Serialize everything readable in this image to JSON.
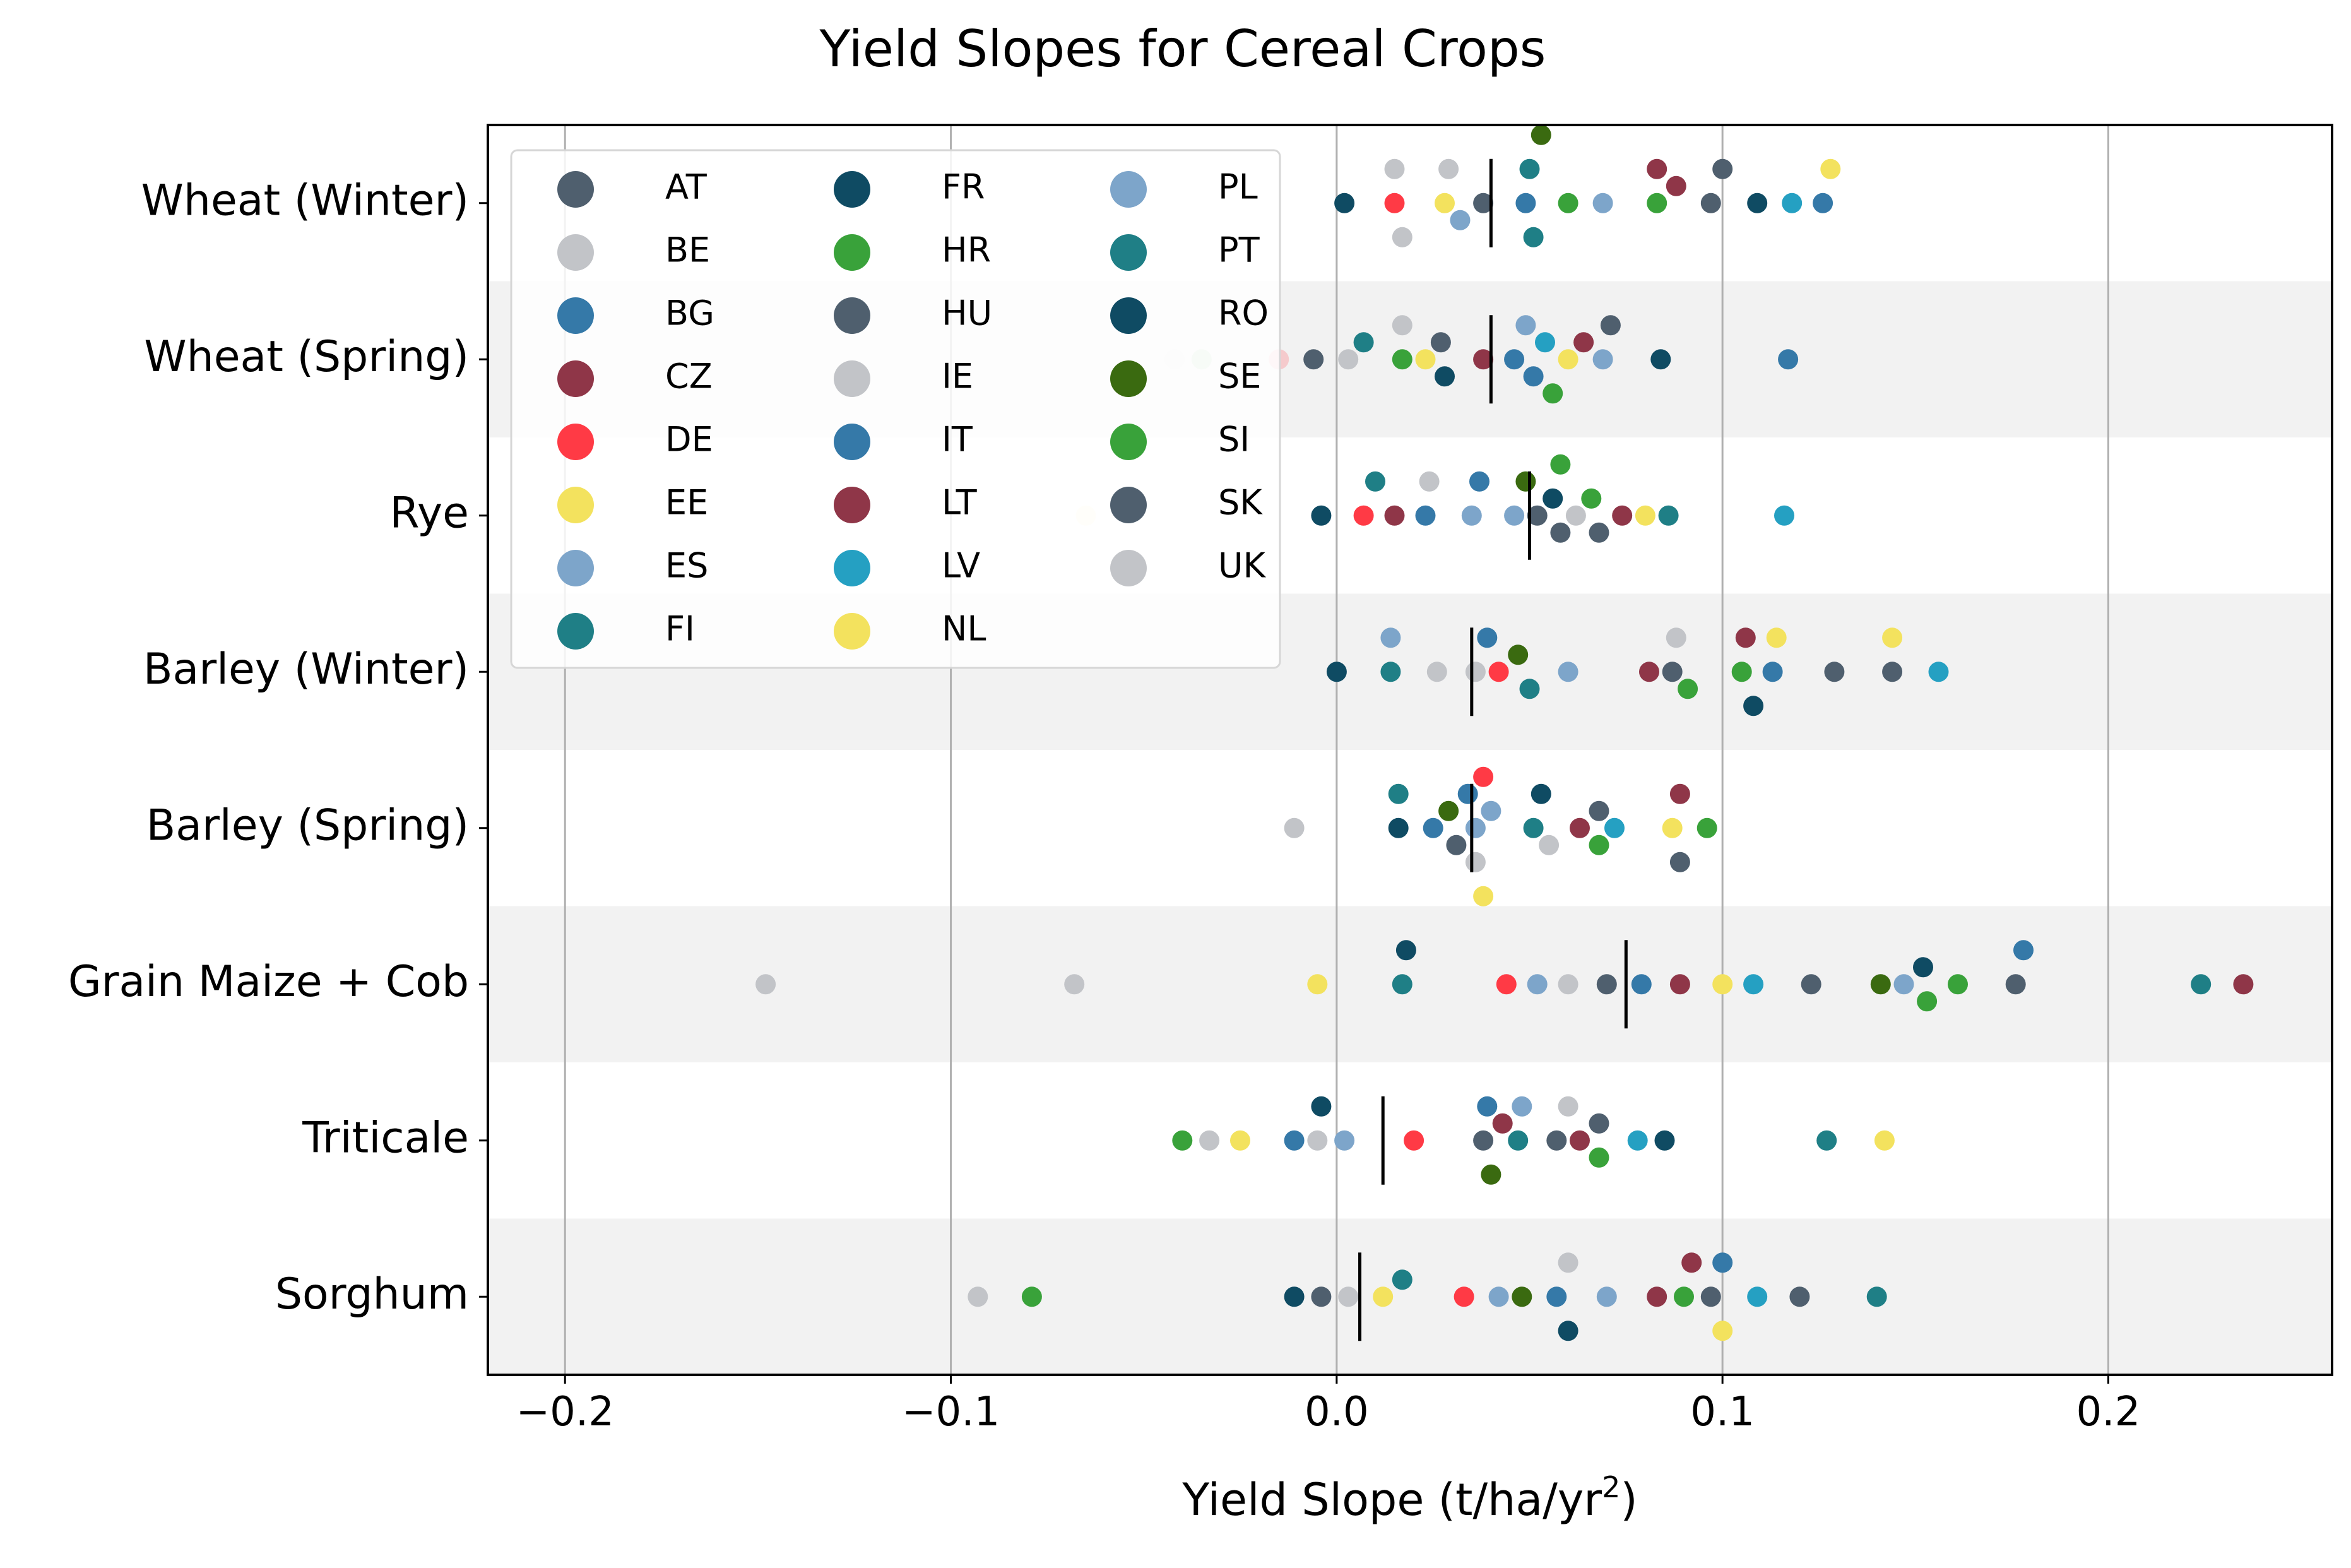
{
  "chart_data": {
    "type": "scatter",
    "subtype": "categorical strip plot",
    "title": "Yield Slopes for Cereal Crops",
    "xlabel": "Yield Slope (t/ha/yr",
    "xlabel_superscript": "2",
    "xlabel_suffix": ")",
    "ylabel": "",
    "xlim": [
      -0.22,
      0.258
    ],
    "xticks": [
      -0.2,
      -0.1,
      0.0,
      0.1,
      0.2
    ],
    "xtick_labels": [
      "−0.2",
      "−0.1",
      "0.0",
      "0.1",
      "0.2"
    ],
    "grid": "x-major",
    "band_color": "#f2f2f2",
    "legend_placement": "upper-left",
    "legend": [
      {
        "code": "AT",
        "color": "#4f5f6e"
      },
      {
        "code": "BE",
        "color": "#c2c4c8"
      },
      {
        "code": "BG",
        "color": "#3579a8"
      },
      {
        "code": "CZ",
        "color": "#8f3648"
      },
      {
        "code": "DE",
        "color": "#ff3a45"
      },
      {
        "code": "EE",
        "color": "#f3e25e"
      },
      {
        "code": "ES",
        "color": "#7da5ca"
      },
      {
        "code": "FI",
        "color": "#1f7f86"
      },
      {
        "code": "FR",
        "color": "#0f4b63"
      },
      {
        "code": "HR",
        "color": "#39a23a"
      },
      {
        "code": "HU",
        "color": "#4f5f6e"
      },
      {
        "code": "IE",
        "color": "#c2c4c8"
      },
      {
        "code": "IT",
        "color": "#3579a8"
      },
      {
        "code": "LT",
        "color": "#8f3648"
      },
      {
        "code": "LV",
        "color": "#25a0c2"
      },
      {
        "code": "NL",
        "color": "#f3e25e"
      },
      {
        "code": "PL",
        "color": "#7da5ca"
      },
      {
        "code": "PT",
        "color": "#1f7f86"
      },
      {
        "code": "RO",
        "color": "#0f4b63"
      },
      {
        "code": "SE",
        "color": "#3a6a10"
      },
      {
        "code": "SI",
        "color": "#39a23a"
      },
      {
        "code": "SK",
        "color": "#4f5f6e"
      },
      {
        "code": "UK",
        "color": "#c2c4c8"
      }
    ],
    "categories": [
      "Wheat (Winter)",
      "Wheat (Spring)",
      "Rye",
      "Barley (Winter)",
      "Barley (Spring)",
      "Grain Maize + Cob",
      "Triticale",
      "Sorghum"
    ],
    "medians": [
      0.04,
      0.04,
      0.05,
      0.035,
      0.035,
      0.075,
      0.012,
      0.006
    ],
    "series": [
      {
        "category": "Wheat (Winter)",
        "points": [
          {
            "x": 0.002,
            "c": "RO"
          },
          {
            "x": 0.015,
            "c": "DE"
          },
          {
            "x": 0.015,
            "c": "BE"
          },
          {
            "x": 0.017,
            "c": "UK"
          },
          {
            "x": 0.028,
            "c": "EE"
          },
          {
            "x": 0.029,
            "c": "IE"
          },
          {
            "x": 0.032,
            "c": "PL"
          },
          {
            "x": 0.038,
            "c": "AT"
          },
          {
            "x": 0.049,
            "c": "IT"
          },
          {
            "x": 0.05,
            "c": "FI"
          },
          {
            "x": 0.051,
            "c": "PT"
          },
          {
            "x": 0.053,
            "c": "SE"
          },
          {
            "x": 0.06,
            "c": "HR"
          },
          {
            "x": 0.069,
            "c": "ES"
          },
          {
            "x": 0.083,
            "c": "SI"
          },
          {
            "x": 0.083,
            "c": "LT"
          },
          {
            "x": 0.088,
            "c": "CZ"
          },
          {
            "x": 0.097,
            "c": "SK"
          },
          {
            "x": 0.1,
            "c": "HU"
          },
          {
            "x": 0.109,
            "c": "FR"
          },
          {
            "x": 0.118,
            "c": "LV"
          },
          {
            "x": 0.126,
            "c": "BG"
          },
          {
            "x": 0.128,
            "c": "NL"
          }
        ]
      },
      {
        "category": "Wheat (Spring)",
        "points": [
          {
            "x": -0.042,
            "c": "BE",
            "faded": true
          },
          {
            "x": -0.035,
            "c": "SI",
            "faded": true
          },
          {
            "x": -0.015,
            "c": "DE",
            "faded": true
          },
          {
            "x": -0.006,
            "c": "AT"
          },
          {
            "x": 0.003,
            "c": "UK"
          },
          {
            "x": 0.007,
            "c": "FI"
          },
          {
            "x": 0.017,
            "c": "HR"
          },
          {
            "x": 0.017,
            "c": "BE"
          },
          {
            "x": 0.023,
            "c": "EE"
          },
          {
            "x": 0.027,
            "c": "SK"
          },
          {
            "x": 0.028,
            "c": "RO"
          },
          {
            "x": 0.038,
            "c": "CZ"
          },
          {
            "x": 0.046,
            "c": "BG"
          },
          {
            "x": 0.049,
            "c": "ES"
          },
          {
            "x": 0.051,
            "c": "IT"
          },
          {
            "x": 0.054,
            "c": "LV"
          },
          {
            "x": 0.056,
            "c": "SI"
          },
          {
            "x": 0.06,
            "c": "NL"
          },
          {
            "x": 0.064,
            "c": "LT"
          },
          {
            "x": 0.069,
            "c": "PL"
          },
          {
            "x": 0.071,
            "c": "HU"
          },
          {
            "x": 0.084,
            "c": "FR"
          },
          {
            "x": 0.117,
            "c": "BG"
          }
        ]
      },
      {
        "category": "Rye",
        "points": [
          {
            "x": -0.065,
            "c": "EE",
            "faded": true
          },
          {
            "x": -0.004,
            "c": "FR"
          },
          {
            "x": 0.007,
            "c": "DE"
          },
          {
            "x": 0.01,
            "c": "PT"
          },
          {
            "x": 0.015,
            "c": "LT"
          },
          {
            "x": 0.023,
            "c": "BG"
          },
          {
            "x": 0.024,
            "c": "BE"
          },
          {
            "x": 0.035,
            "c": "PL"
          },
          {
            "x": 0.037,
            "c": "IT"
          },
          {
            "x": 0.046,
            "c": "ES"
          },
          {
            "x": 0.049,
            "c": "SE"
          },
          {
            "x": 0.052,
            "c": "AT"
          },
          {
            "x": 0.056,
            "c": "RO"
          },
          {
            "x": 0.058,
            "c": "SK"
          },
          {
            "x": 0.058,
            "c": "HR"
          },
          {
            "x": 0.062,
            "c": "UK"
          },
          {
            "x": 0.066,
            "c": "SI"
          },
          {
            "x": 0.068,
            "c": "HU"
          },
          {
            "x": 0.074,
            "c": "CZ"
          },
          {
            "x": 0.08,
            "c": "NL"
          },
          {
            "x": 0.086,
            "c": "FI"
          },
          {
            "x": 0.116,
            "c": "LV"
          }
        ]
      },
      {
        "category": "Barley (Winter)",
        "points": [
          {
            "x": 0.0,
            "c": "RO"
          },
          {
            "x": 0.014,
            "c": "FI"
          },
          {
            "x": 0.014,
            "c": "ES"
          },
          {
            "x": 0.026,
            "c": "BE"
          },
          {
            "x": 0.036,
            "c": "UK"
          },
          {
            "x": 0.039,
            "c": "IT"
          },
          {
            "x": 0.042,
            "c": "DE"
          },
          {
            "x": 0.047,
            "c": "SE"
          },
          {
            "x": 0.05,
            "c": "PT"
          },
          {
            "x": 0.06,
            "c": "PL"
          },
          {
            "x": 0.081,
            "c": "CZ"
          },
          {
            "x": 0.087,
            "c": "HU"
          },
          {
            "x": 0.088,
            "c": "IE"
          },
          {
            "x": 0.091,
            "c": "HR"
          },
          {
            "x": 0.105,
            "c": "SI"
          },
          {
            "x": 0.106,
            "c": "LT"
          },
          {
            "x": 0.108,
            "c": "RO"
          },
          {
            "x": 0.113,
            "c": "BG"
          },
          {
            "x": 0.114,
            "c": "NL"
          },
          {
            "x": 0.129,
            "c": "AT"
          },
          {
            "x": 0.144,
            "c": "SK"
          },
          {
            "x": 0.144,
            "c": "EE"
          },
          {
            "x": 0.156,
            "c": "LV"
          }
        ]
      },
      {
        "category": "Barley (Spring)",
        "points": [
          {
            "x": -0.011,
            "c": "IE"
          },
          {
            "x": 0.016,
            "c": "RO"
          },
          {
            "x": 0.016,
            "c": "FI"
          },
          {
            "x": 0.025,
            "c": "BG"
          },
          {
            "x": 0.029,
            "c": "SE"
          },
          {
            "x": 0.031,
            "c": "AT"
          },
          {
            "x": 0.034,
            "c": "IT"
          },
          {
            "x": 0.036,
            "c": "PL"
          },
          {
            "x": 0.036,
            "c": "UK"
          },
          {
            "x": 0.038,
            "c": "DE"
          },
          {
            "x": 0.038,
            "c": "EE"
          },
          {
            "x": 0.04,
            "c": "ES"
          },
          {
            "x": 0.051,
            "c": "PT"
          },
          {
            "x": 0.053,
            "c": "FR"
          },
          {
            "x": 0.055,
            "c": "BE"
          },
          {
            "x": 0.063,
            "c": "CZ"
          },
          {
            "x": 0.068,
            "c": "HU"
          },
          {
            "x": 0.068,
            "c": "SI"
          },
          {
            "x": 0.072,
            "c": "LV"
          },
          {
            "x": 0.087,
            "c": "NL"
          },
          {
            "x": 0.089,
            "c": "LT"
          },
          {
            "x": 0.089,
            "c": "SK"
          },
          {
            "x": 0.096,
            "c": "HR"
          }
        ]
      },
      {
        "category": "Grain Maize + Cob",
        "points": [
          {
            "x": -0.148,
            "c": "IE"
          },
          {
            "x": -0.068,
            "c": "BE"
          },
          {
            "x": -0.005,
            "c": "EE"
          },
          {
            "x": 0.017,
            "c": "FI"
          },
          {
            "x": 0.018,
            "c": "FR"
          },
          {
            "x": 0.044,
            "c": "DE"
          },
          {
            "x": 0.052,
            "c": "ES"
          },
          {
            "x": 0.06,
            "c": "UK"
          },
          {
            "x": 0.07,
            "c": "AT"
          },
          {
            "x": 0.079,
            "c": "BG"
          },
          {
            "x": 0.089,
            "c": "LT"
          },
          {
            "x": 0.1,
            "c": "NL"
          },
          {
            "x": 0.108,
            "c": "LV"
          },
          {
            "x": 0.123,
            "c": "HU"
          },
          {
            "x": 0.141,
            "c": "SE"
          },
          {
            "x": 0.147,
            "c": "PL"
          },
          {
            "x": 0.153,
            "c": "HR"
          },
          {
            "x": 0.152,
            "c": "RO"
          },
          {
            "x": 0.161,
            "c": "SI"
          },
          {
            "x": 0.176,
            "c": "SK"
          },
          {
            "x": 0.178,
            "c": "BG"
          },
          {
            "x": 0.224,
            "c": "PT"
          },
          {
            "x": 0.235,
            "c": "CZ"
          }
        ]
      },
      {
        "category": "Triticale",
        "points": [
          {
            "x": -0.04,
            "c": "HR"
          },
          {
            "x": -0.033,
            "c": "BE"
          },
          {
            "x": -0.025,
            "c": "EE"
          },
          {
            "x": -0.011,
            "c": "IT"
          },
          {
            "x": -0.004,
            "c": "FR"
          },
          {
            "x": -0.005,
            "c": "IE"
          },
          {
            "x": 0.002,
            "c": "ES"
          },
          {
            "x": 0.02,
            "c": "DE"
          },
          {
            "x": 0.038,
            "c": "AT"
          },
          {
            "x": 0.039,
            "c": "IT"
          },
          {
            "x": 0.04,
            "c": "SE"
          },
          {
            "x": 0.043,
            "c": "LT"
          },
          {
            "x": 0.047,
            "c": "FI"
          },
          {
            "x": 0.048,
            "c": "PL"
          },
          {
            "x": 0.057,
            "c": "SK"
          },
          {
            "x": 0.06,
            "c": "UK"
          },
          {
            "x": 0.063,
            "c": "CZ"
          },
          {
            "x": 0.068,
            "c": "HU"
          },
          {
            "x": 0.068,
            "c": "SI"
          },
          {
            "x": 0.078,
            "c": "LV"
          },
          {
            "x": 0.085,
            "c": "RO"
          },
          {
            "x": 0.127,
            "c": "PT"
          },
          {
            "x": 0.142,
            "c": "NL"
          }
        ]
      },
      {
        "category": "Sorghum",
        "points": [
          {
            "x": -0.093,
            "c": "IE"
          },
          {
            "x": -0.079,
            "c": "SI"
          },
          {
            "x": -0.011,
            "c": "RO"
          },
          {
            "x": -0.004,
            "c": "AT"
          },
          {
            "x": 0.003,
            "c": "BE"
          },
          {
            "x": 0.012,
            "c": "EE"
          },
          {
            "x": 0.017,
            "c": "FI"
          },
          {
            "x": 0.033,
            "c": "DE"
          },
          {
            "x": 0.042,
            "c": "ES"
          },
          {
            "x": 0.048,
            "c": "SE"
          },
          {
            "x": 0.057,
            "c": "IT"
          },
          {
            "x": 0.06,
            "c": "UK"
          },
          {
            "x": 0.06,
            "c": "FR"
          },
          {
            "x": 0.07,
            "c": "PL"
          },
          {
            "x": 0.083,
            "c": "LT"
          },
          {
            "x": 0.09,
            "c": "SI"
          },
          {
            "x": 0.092,
            "c": "CZ"
          },
          {
            "x": 0.097,
            "c": "HU"
          },
          {
            "x": 0.1,
            "c": "BG"
          },
          {
            "x": 0.1,
            "c": "NL"
          },
          {
            "x": 0.109,
            "c": "LV"
          },
          {
            "x": 0.12,
            "c": "AT"
          },
          {
            "x": 0.14,
            "c": "PT"
          }
        ]
      }
    ]
  }
}
